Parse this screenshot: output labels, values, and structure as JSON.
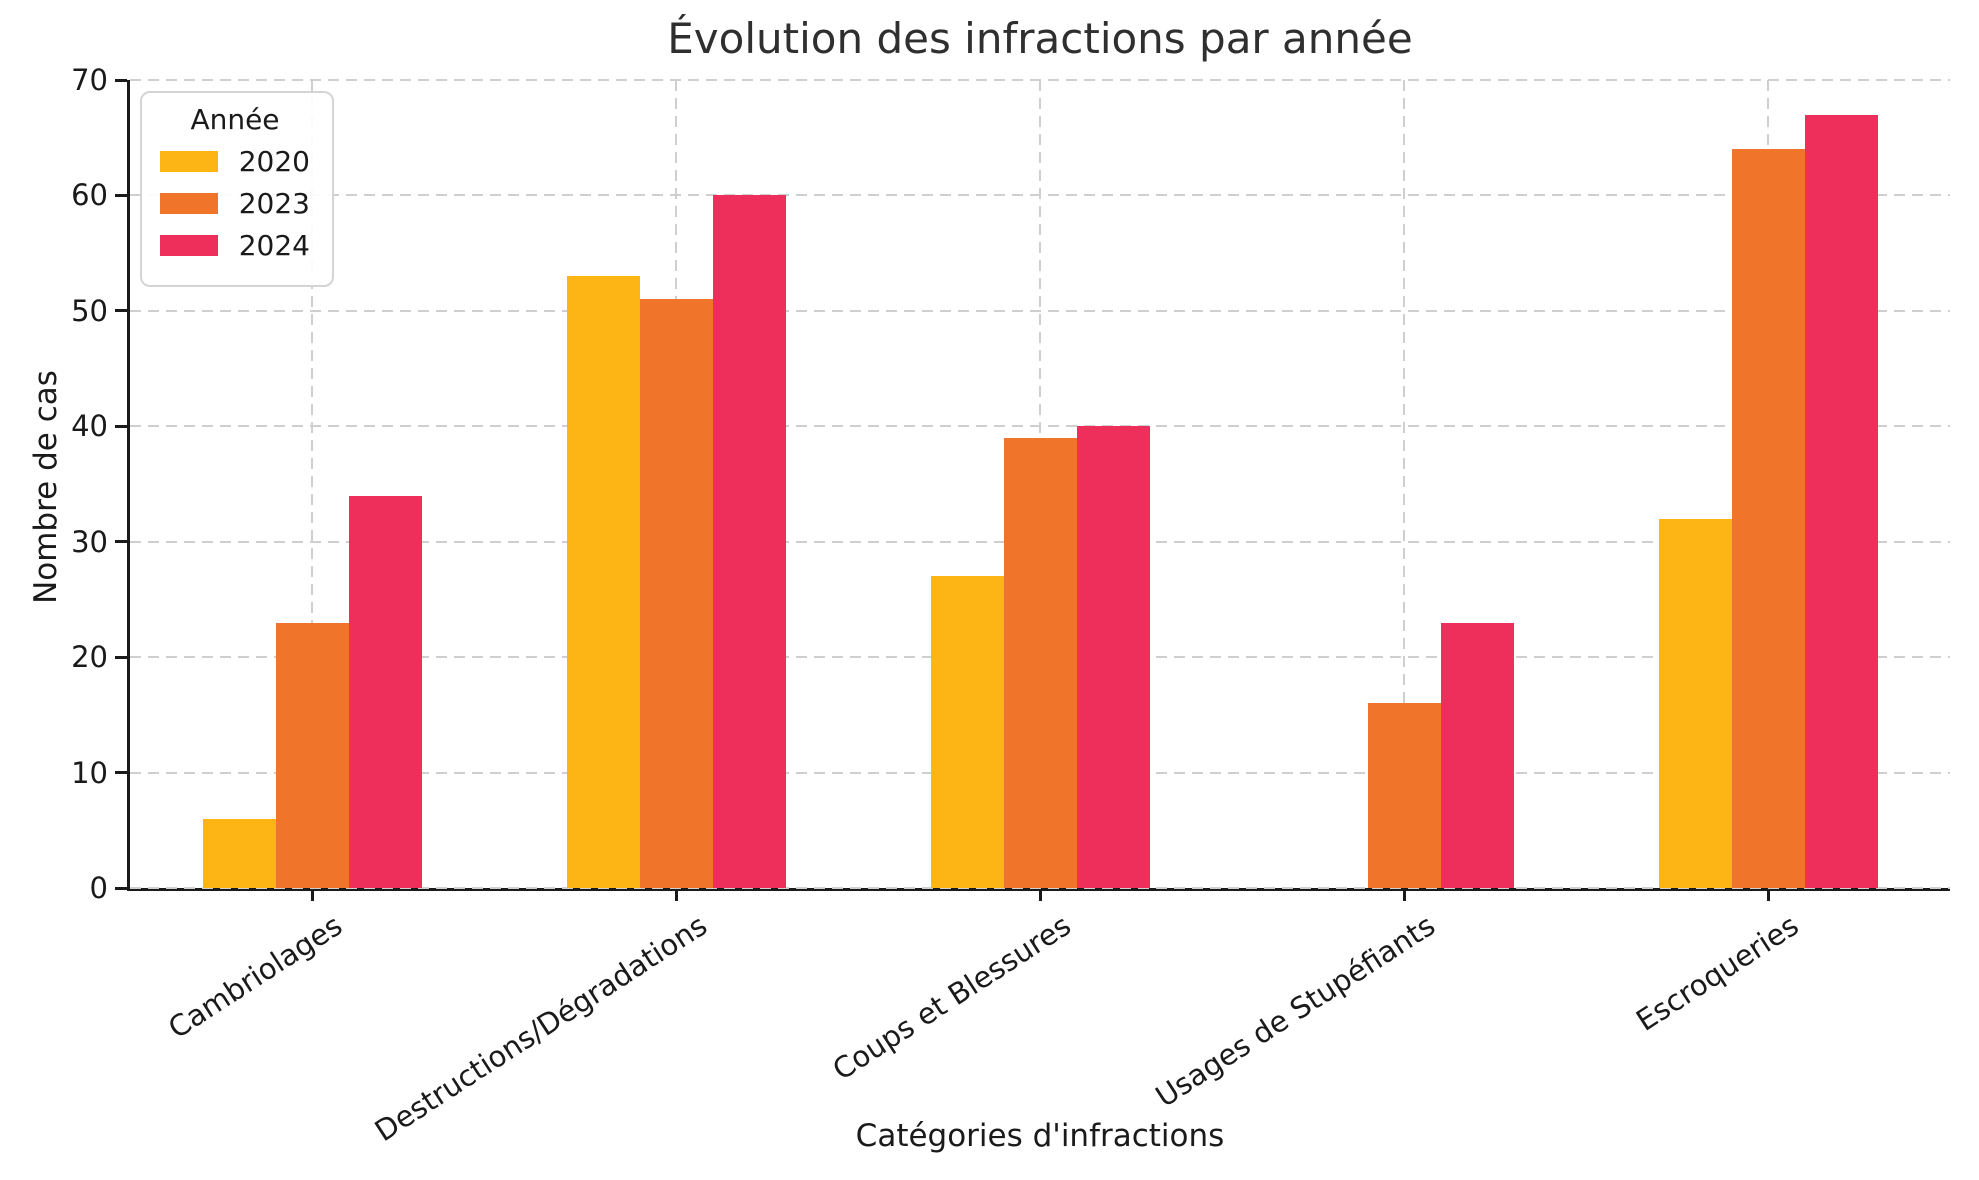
{
  "chart_data": {
    "type": "bar",
    "title": "Évolution des infractions par année",
    "xlabel": "Catégories d'infractions",
    "ylabel": "Nombre de cas",
    "categories": [
      "Cambriolages",
      "Destructions/Dégradations",
      "Coups et Blessures",
      "Usages de Stupéfiants",
      "Escroqueries"
    ],
    "series": [
      {
        "name": "2020",
        "color": "#FDB515",
        "values": [
          6,
          53,
          27,
          0,
          32
        ]
      },
      {
        "name": "2023",
        "color": "#F0752B",
        "values": [
          23,
          51,
          39,
          16,
          64
        ]
      },
      {
        "name": "2024",
        "color": "#EF2F5B",
        "values": [
          34,
          60,
          40,
          23,
          67
        ]
      }
    ],
    "legend_title": "Année",
    "legend_position": "upper left",
    "ylim": [
      0,
      70
    ],
    "yticks": [
      0,
      10,
      20,
      30,
      40,
      50,
      60,
      70
    ],
    "grid": "dashed, horizontal and vertical",
    "colors": {
      "grid": "#cfcfcf",
      "spine": "#1a1a1a",
      "title_text": "#2f2f2f",
      "tick_text": "#1a1a1a",
      "background": "#ffffff"
    }
  }
}
